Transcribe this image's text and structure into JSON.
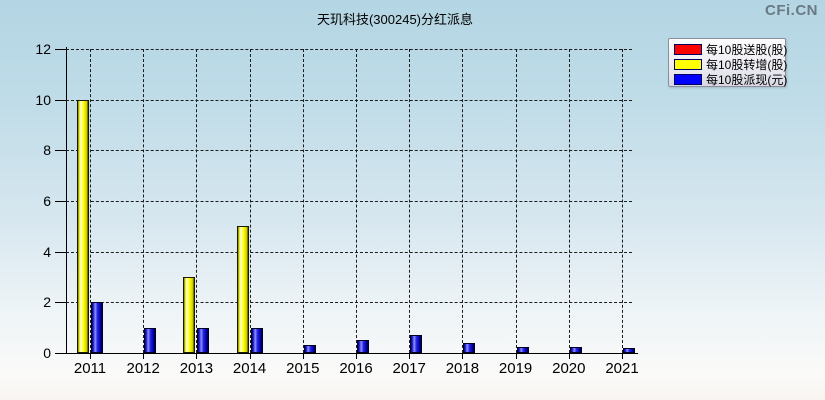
{
  "header": {
    "watermark": "CFi.CN"
  },
  "chart_data": {
    "type": "bar",
    "title": "天玑科技(300245)分红派息",
    "categories": [
      "2011",
      "2012",
      "2013",
      "2014",
      "2015",
      "2016",
      "2017",
      "2018",
      "2019",
      "2020",
      "2021"
    ],
    "series": [
      {
        "name": "每10股送股(股)",
        "color": "#ff0000",
        "values": [
          0,
          0,
          0,
          0,
          0,
          0,
          0,
          0,
          0,
          0,
          0
        ]
      },
      {
        "name": "每10股转增(股)",
        "color": "#ffff00",
        "values": [
          10,
          0,
          3,
          5,
          0,
          0,
          0,
          0,
          0,
          0,
          0
        ]
      },
      {
        "name": "每10股派现(元)",
        "color": "#0000ff",
        "values": [
          2,
          1,
          1,
          1,
          0.3,
          0.5,
          0.7,
          0.4,
          0.25,
          0.25,
          0.2
        ]
      }
    ],
    "xlabel": "",
    "ylabel": "",
    "ylim": [
      0,
      12
    ],
    "yticks": [
      0,
      2,
      4,
      6,
      8,
      10,
      12
    ],
    "grid": true,
    "grid_style": "dashed",
    "legend_position": "top-right",
    "background_top_color": "#b4d5e3",
    "background_bottom_color": "#f8f5f1"
  }
}
